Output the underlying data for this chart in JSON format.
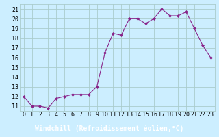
{
  "x": [
    0,
    1,
    2,
    3,
    4,
    5,
    6,
    7,
    8,
    9,
    10,
    11,
    12,
    13,
    14,
    15,
    16,
    17,
    18,
    19,
    20,
    21,
    22,
    23
  ],
  "y": [
    12,
    11,
    11,
    10.8,
    11.8,
    12,
    12.2,
    12.2,
    12.2,
    13,
    16.5,
    18.5,
    18.3,
    20,
    20,
    19.5,
    20,
    21,
    20.3,
    20.3,
    20.7,
    19,
    17.3,
    16
  ],
  "line_color": "#882288",
  "marker": "D",
  "marker_size": 2,
  "bg_color": "#cceeff",
  "grid_color": "#aacccc",
  "xlabel": "Windchill (Refroidissement éolien,°C)",
  "xlabel_fontsize": 7,
  "yticks": [
    11,
    12,
    13,
    14,
    15,
    16,
    17,
    18,
    19,
    20,
    21
  ],
  "xtick_labels": [
    "0",
    "1",
    "2",
    "3",
    "4",
    "5",
    "6",
    "7",
    "8",
    "9",
    "10",
    "11",
    "12",
    "13",
    "14",
    "15",
    "16",
    "17",
    "18",
    "19",
    "20",
    "21",
    "22",
    "23"
  ],
  "ylim": [
    10.5,
    21.5
  ],
  "xlim": [
    -0.5,
    23.5
  ],
  "tick_fontsize": 6,
  "axis_label_color": "#ffffff",
  "axis_bg_color": "#7722aa"
}
